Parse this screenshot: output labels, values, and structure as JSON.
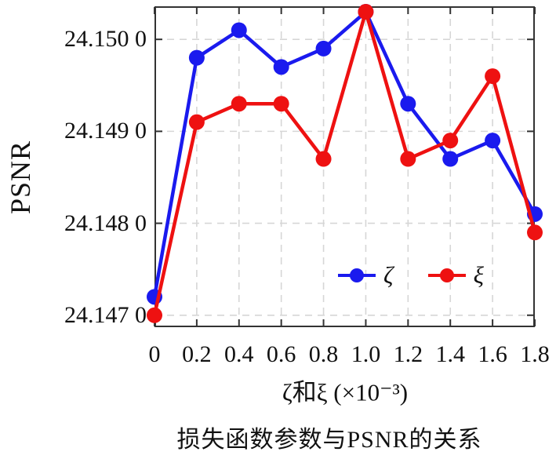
{
  "chart_data": {
    "type": "line",
    "title": "损失函数参数与PSNR的关系",
    "xlabel": "ζ和ξ (×10⁻³)",
    "ylabel": "PSNR",
    "x": [
      0,
      0.2,
      0.4,
      0.6,
      0.8,
      1.0,
      1.2,
      1.4,
      1.6,
      1.8
    ],
    "series": [
      {
        "name": "ζ",
        "color": "#1a1aee",
        "values": [
          24.1472,
          24.1498,
          24.1501,
          24.1497,
          24.1499,
          24.1503,
          24.1493,
          24.1487,
          24.1489,
          24.1481
        ]
      },
      {
        "name": "ξ",
        "color": "#ee1111",
        "values": [
          24.147,
          24.1491,
          24.1493,
          24.1493,
          24.1487,
          24.1503,
          24.1487,
          24.1489,
          24.1496,
          24.1479
        ]
      }
    ],
    "xlim": [
      0,
      1.8
    ],
    "ylim": [
      24.14687,
      24.15036
    ],
    "xticks": [
      0,
      0.2,
      0.4,
      0.6,
      0.8,
      1.0,
      1.2,
      1.4,
      1.6,
      1.8
    ],
    "xtick_labels": [
      "0",
      "0.2",
      "0.4",
      "0.6",
      "0.8",
      "1.0",
      "1.2",
      "1.4",
      "1.6",
      "1.8"
    ],
    "yticks": [
      24.147,
      24.148,
      24.149,
      24.15
    ],
    "ytick_labels": [
      "24.147 0",
      "24.148 0",
      "24.149 0",
      "24.150 0"
    ],
    "grid": true,
    "legend_position": "inside-lower-center",
    "marker": "filled-circle",
    "colors": {
      "grid": "#d6d6d6",
      "spine": "#333333",
      "text": "#111111"
    }
  }
}
